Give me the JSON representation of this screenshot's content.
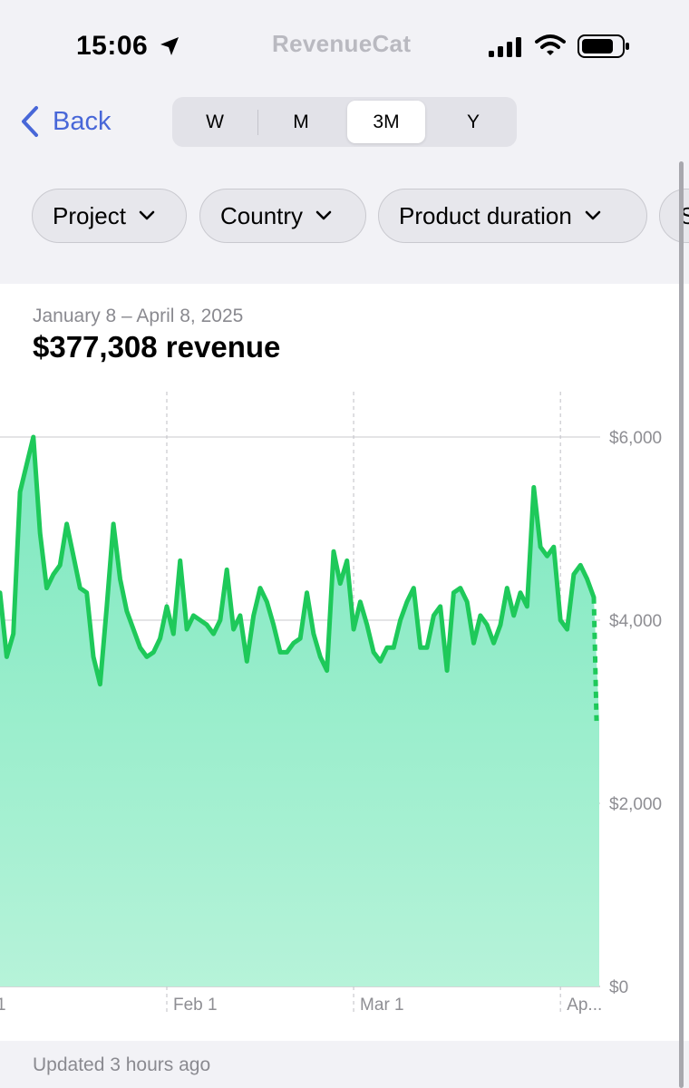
{
  "status_bar": {
    "time": "15:06",
    "brand": "RevenueCat"
  },
  "nav": {
    "back_label": "Back"
  },
  "periods": [
    {
      "label": "W",
      "active": false
    },
    {
      "label": "M",
      "active": false
    },
    {
      "label": "3M",
      "active": true
    },
    {
      "label": "Y",
      "active": false
    }
  ],
  "filters": [
    {
      "label": "Project"
    },
    {
      "label": "Country"
    },
    {
      "label": "Product duration"
    },
    {
      "label": "S"
    }
  ],
  "summary": {
    "date_range": "January 8 – April 8, 2025",
    "headline": "$377,308 revenue"
  },
  "footer": {
    "updated": "Updated 3 hours ago"
  },
  "colors": {
    "accent": "#4867d8",
    "line": "#1ec95a",
    "fill_top": "#7de8bf",
    "fill_bottom": "#b6f3d9"
  },
  "chart_data": {
    "type": "area",
    "title": "",
    "xlabel": "",
    "ylabel": "",
    "ylim": [
      0,
      6500
    ],
    "y_ticks": [
      {
        "value": 6000,
        "label": "$6,000"
      },
      {
        "value": 4000,
        "label": "$4,000"
      },
      {
        "value": 2000,
        "label": "$2,000"
      },
      {
        "value": 0,
        "label": "$0"
      }
    ],
    "x_ticks": [
      {
        "day": 25,
        "label": "Feb 1"
      },
      {
        "day": 53,
        "label": "Mar 1"
      },
      {
        "day": 84,
        "label": "Ap..."
      }
    ],
    "x_start_label": "1",
    "grid": true,
    "legend": "none",
    "series": [
      {
        "values": [
          4300,
          3600,
          3850,
          5400,
          5700,
          6000,
          4950,
          4350,
          4500,
          4600,
          5050,
          4700,
          4350,
          4300,
          3600,
          3300,
          4150,
          5050,
          4450,
          4100,
          3900,
          3700,
          3600,
          3650,
          3800,
          4150,
          3850,
          4650,
          3900,
          4050,
          4000,
          3950,
          3850,
          4000,
          4550,
          3900,
          4050,
          3550,
          4050,
          4350,
          4200,
          3950,
          3650,
          3650,
          3750,
          3800,
          4300,
          3850,
          3600,
          3450,
          4750,
          4400,
          4650,
          3900,
          4200,
          3950,
          3650,
          3550,
          3700,
          3700,
          4000,
          4200,
          4350,
          3700,
          3700,
          4050,
          4150,
          3450,
          4300,
          4350,
          4200,
          3750,
          4050,
          3950,
          3750,
          3950,
          4350,
          4050,
          4300,
          4150,
          5450,
          4800,
          4700,
          4800,
          4000,
          3900,
          4500,
          4600,
          4450,
          4250
        ],
        "projected_end": 2900
      }
    ]
  }
}
